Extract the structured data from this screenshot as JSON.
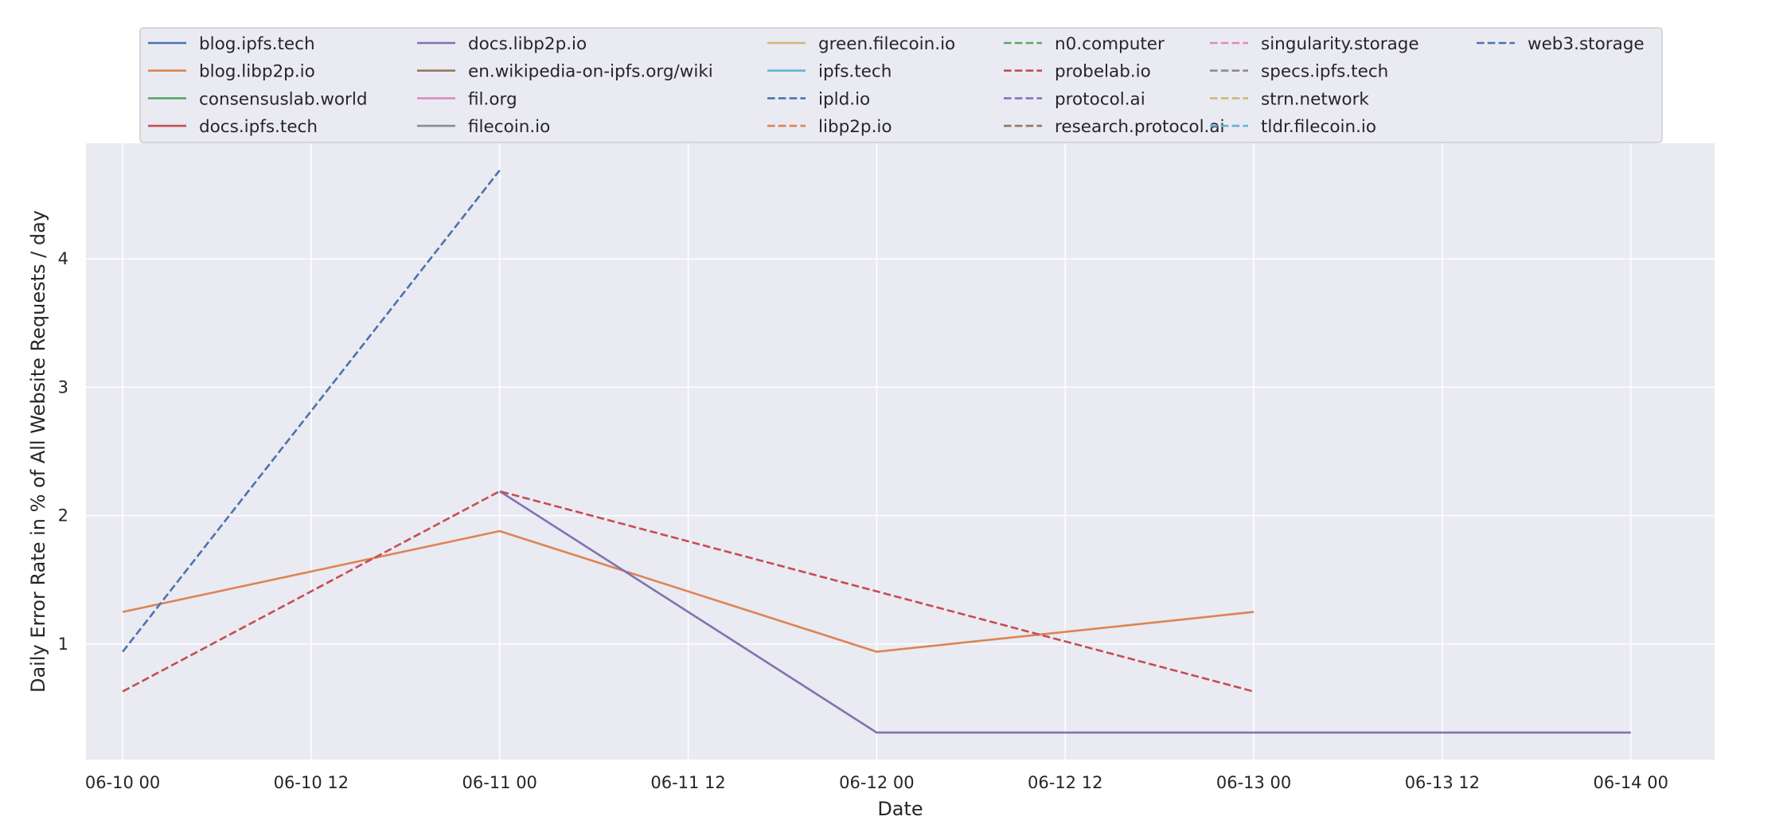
{
  "chart_data": {
    "type": "line",
    "xlabel": "Date",
    "ylabel": "Daily Error Rate in % of All Website Requests / day",
    "x_ticks": [
      {
        "date": "2023-06-10T00:00",
        "label": "06-10 00"
      },
      {
        "date": "2023-06-10T12:00",
        "label": "06-10 12"
      },
      {
        "date": "2023-06-11T00:00",
        "label": "06-11 00"
      },
      {
        "date": "2023-06-11T12:00",
        "label": "06-11 12"
      },
      {
        "date": "2023-06-12T00:00",
        "label": "06-12 00"
      },
      {
        "date": "2023-06-12T12:00",
        "label": "06-12 12"
      },
      {
        "date": "2023-06-13T00:00",
        "label": "06-13 00"
      },
      {
        "date": "2023-06-13T12:00",
        "label": "06-13 12"
      },
      {
        "date": "2023-06-14T00:00",
        "label": "06-14 00"
      }
    ],
    "y_ticks": [
      1,
      2,
      3,
      4
    ],
    "xlim": [
      "2023-06-09T21:40",
      "2023-06-14T05:20"
    ],
    "ylim": [
      0.1,
      4.9
    ],
    "grid": true,
    "legend_position": "top",
    "series": [
      {
        "name": "blog.ipfs.tech",
        "color": "#4c72b0",
        "dash": "solid",
        "points": []
      },
      {
        "name": "blog.libp2p.io",
        "color": "#dd8452",
        "dash": "solid",
        "points": [
          [
            "2023-06-10",
            1.25
          ],
          [
            "2023-06-11",
            1.88
          ],
          [
            "2023-06-12",
            0.94
          ],
          [
            "2023-06-13",
            1.25
          ]
        ]
      },
      {
        "name": "consensuslab.world",
        "color": "#55a868",
        "dash": "solid",
        "points": []
      },
      {
        "name": "docs.ipfs.tech",
        "color": "#c44e52",
        "dash": "solid",
        "points": []
      },
      {
        "name": "docs.libp2p.io",
        "color": "#8172b3",
        "dash": "solid",
        "points": [
          [
            "2023-06-11",
            2.19
          ],
          [
            "2023-06-12",
            0.31
          ],
          [
            "2023-06-13",
            0.31
          ],
          [
            "2023-06-14",
            0.31
          ]
        ]
      },
      {
        "name": "en.wikipedia-on-ipfs.org/wiki",
        "color": "#937860",
        "dash": "solid",
        "points": []
      },
      {
        "name": "fil.org",
        "color": "#da8bc3",
        "dash": "solid",
        "points": []
      },
      {
        "name": "filecoin.io",
        "color": "#8c8c8c",
        "dash": "solid",
        "points": []
      },
      {
        "name": "green.filecoin.io",
        "color": "#ccb974",
        "dash": "solid",
        "points": []
      },
      {
        "name": "ipfs.tech",
        "color": "#64b5cd",
        "dash": "solid",
        "points": []
      },
      {
        "name": "ipld.io",
        "color": "#4c72b0",
        "dash": "dashed",
        "points": [
          [
            "2023-06-10",
            0.94
          ],
          [
            "2023-06-11",
            4.69
          ]
        ]
      },
      {
        "name": "libp2p.io",
        "color": "#dd8452",
        "dash": "dashed",
        "points": []
      },
      {
        "name": "n0.computer",
        "color": "#55a868",
        "dash": "dashed",
        "points": []
      },
      {
        "name": "probelab.io",
        "color": "#c44e52",
        "dash": "dashed",
        "points": [
          [
            "2023-06-10",
            0.63
          ],
          [
            "2023-06-11",
            2.19
          ],
          [
            "2023-06-13",
            0.63
          ]
        ]
      },
      {
        "name": "protocol.ai",
        "color": "#8172b3",
        "dash": "dashed",
        "points": []
      },
      {
        "name": "research.protocol.ai",
        "color": "#937860",
        "dash": "dashed",
        "points": []
      },
      {
        "name": "singularity.storage",
        "color": "#da8bc3",
        "dash": "dashed",
        "points": []
      },
      {
        "name": "specs.ipfs.tech",
        "color": "#8c8c8c",
        "dash": "dashed",
        "points": []
      },
      {
        "name": "strn.network",
        "color": "#ccb974",
        "dash": "dashed",
        "points": []
      },
      {
        "name": "tldr.filecoin.io",
        "color": "#64b5cd",
        "dash": "dashed",
        "points": []
      },
      {
        "name": "web3.storage",
        "color": "#4c72b0",
        "dash": "dashed",
        "points": []
      }
    ]
  }
}
